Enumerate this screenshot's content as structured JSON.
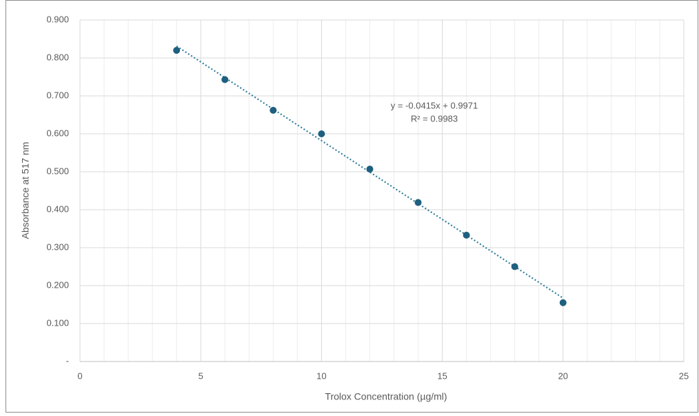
{
  "chart_data": {
    "type": "scatter",
    "x_label": "Trolox Concentration (µg/ml)",
    "y_label": "Absorbance at 517 nm",
    "series": [
      {
        "color": "#1f5f7f",
        "x": [
          4,
          6,
          8,
          10,
          12,
          14,
          16,
          18,
          20
        ],
        "values": [
          0.82,
          0.743,
          0.662,
          0.6,
          0.507,
          0.419,
          0.333,
          0.25,
          0.155
        ]
      }
    ],
    "trendline": {
      "slope": -0.0415,
      "intercept": 0.9971,
      "color": "#2e7d9c",
      "equation": "y = -0.0415x + 0.9971",
      "r2": "R² = 0.9983"
    },
    "xlim": [
      0,
      25
    ],
    "xticks": [
      0,
      5,
      10,
      15,
      20,
      25
    ],
    "ylim": [
      0,
      0.9
    ],
    "yticks": [
      {
        "value": 0,
        "label": "-"
      },
      {
        "value": 0.1,
        "label": "0.100"
      },
      {
        "value": 0.2,
        "label": "0.200"
      },
      {
        "value": 0.3,
        "label": "0.300"
      },
      {
        "value": 0.4,
        "label": "0.400"
      },
      {
        "value": 0.5,
        "label": "0.500"
      },
      {
        "value": 0.6,
        "label": "0.600"
      },
      {
        "value": 0.7,
        "label": "0.700"
      },
      {
        "value": 0.8,
        "label": "0.800"
      },
      {
        "value": 0.9,
        "label": "0.900"
      }
    ],
    "grid": true,
    "minor_grid": true
  }
}
